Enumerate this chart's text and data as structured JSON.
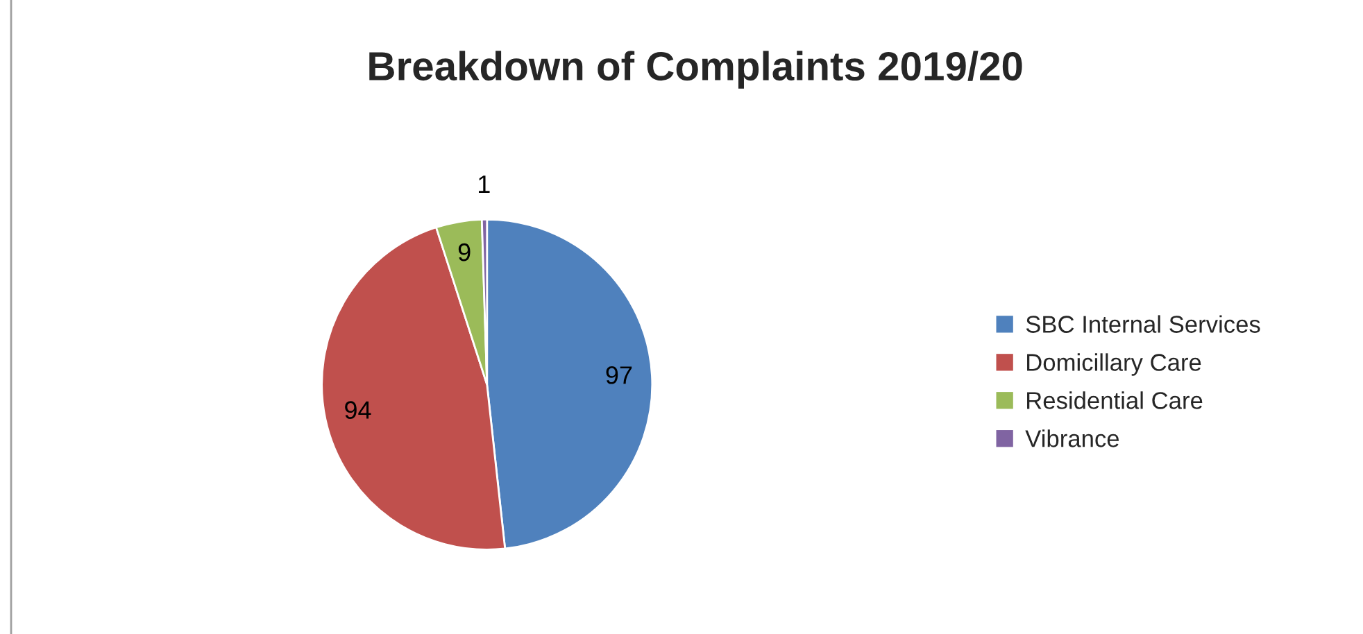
{
  "chart_data": {
    "type": "pie",
    "title": "Breakdown of Complaints 2019/20",
    "categories": [
      "SBC Internal Services",
      "Domicillary Care",
      "Residential Care",
      "Vibrance"
    ],
    "values": [
      97,
      94,
      9,
      1
    ],
    "colors": [
      "#4f81bd",
      "#c0504d",
      "#9bbb59",
      "#8064a2"
    ],
    "data_labels": true,
    "legend": "right"
  }
}
